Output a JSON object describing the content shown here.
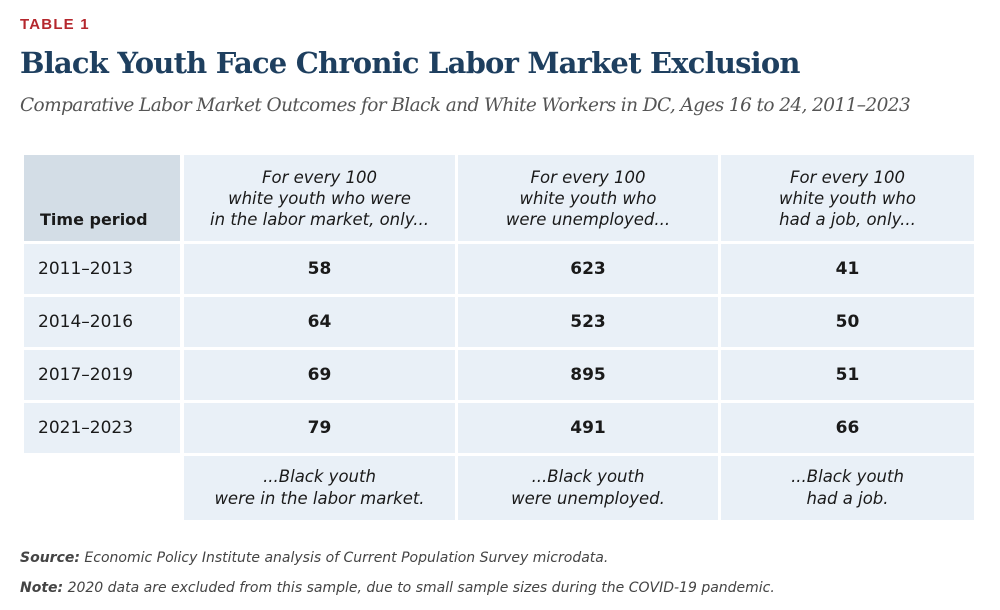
{
  "label": "TABLE 1",
  "title": "Black Youth Face Chronic Labor Market Exclusion",
  "subtitle": "Comparative Labor Market Outcomes for Black and White Workers in DC, Ages 16 to 24, 2011–2023",
  "table": {
    "corner_header": "Time period",
    "columns": [
      {
        "header": [
          "For every 100",
          "white youth who were",
          "in the labor market, only..."
        ],
        "footer": [
          "...Black youth",
          "were in the labor market."
        ]
      },
      {
        "header": [
          "For every 100",
          "white youth who",
          "were unemployed..."
        ],
        "footer": [
          "...Black youth",
          "were unemployed."
        ]
      },
      {
        "header": [
          "For every 100",
          "white youth who",
          "had a job, only..."
        ],
        "footer": [
          "...Black youth",
          "had a job."
        ]
      }
    ],
    "rows": [
      {
        "period": "2011–2013",
        "values": [
          "58",
          "623",
          "41"
        ]
      },
      {
        "period": "2014–2016",
        "values": [
          "64",
          "523",
          "50"
        ]
      },
      {
        "period": "2017–2019",
        "values": [
          "69",
          "895",
          "51"
        ]
      },
      {
        "period": "2021–2023",
        "values": [
          "79",
          "491",
          "66"
        ]
      }
    ]
  },
  "source": {
    "label": "Source:",
    "text": " Economic Policy Institute analysis of Current Population Survey microdata."
  },
  "note": {
    "label": "Note:",
    "text": " 2020 data are excluded from this sample, due to small sample sizes during the COVID-19 pandemic."
  }
}
